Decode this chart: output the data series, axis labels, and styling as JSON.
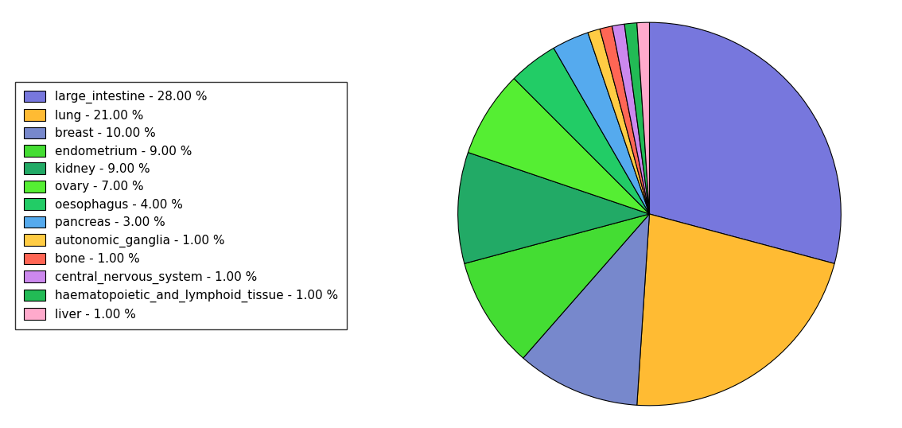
{
  "labels": [
    "large_intestine - 28.00 %",
    "lung - 21.00 %",
    "breast - 10.00 %",
    "endometrium - 9.00 %",
    "kidney - 9.00 %",
    "ovary - 7.00 %",
    "oesophagus - 4.00 %",
    "pancreas - 3.00 %",
    "autonomic_ganglia - 1.00 %",
    "bone - 1.00 %",
    "central_nervous_system - 1.00 %",
    "haematopoietic_and_lymphoid_tissue - 1.00 %",
    "liver - 1.00 %"
  ],
  "values": [
    28,
    21,
    10,
    9,
    9,
    7,
    4,
    3,
    1,
    1,
    1,
    1,
    1
  ],
  "colors": [
    "#7777dd",
    "#ffbb33",
    "#7788cc",
    "#44dd33",
    "#22aa66",
    "#55ee33",
    "#22cc66",
    "#55aaee",
    "#ffcc44",
    "#ff6655",
    "#cc88ee",
    "#22bb55",
    "#ffaacc"
  ],
  "startangle": 90,
  "figsize": [
    11.34,
    5.38
  ],
  "dpi": 100
}
